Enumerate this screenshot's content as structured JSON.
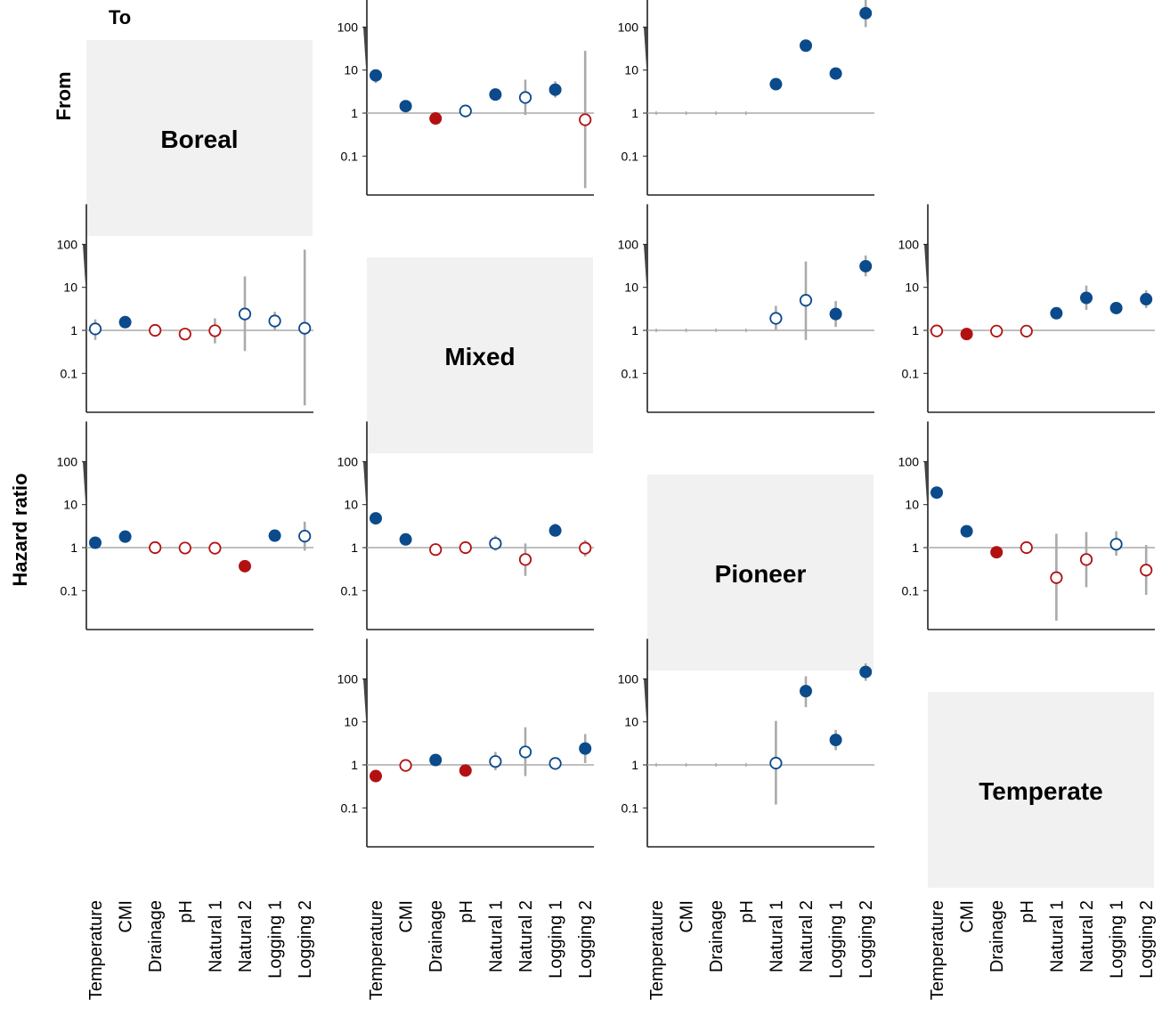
{
  "labels": {
    "to": "To",
    "from": "From",
    "y_axis": "Hazard ratio"
  },
  "colors": {
    "positive": "#0b4a8b",
    "negative": "#b31111",
    "error_bar": "#aaaaaa",
    "reference_line": "#aaaaaa",
    "axis": "#222222",
    "diagonal_panel": "#f1f1f1"
  },
  "chart_data": {
    "type": "scatter",
    "y_scale": "log",
    "ylim": [
      0.01,
      500
    ],
    "y_ticks": [
      {
        "value": 100,
        "label": "100"
      },
      {
        "value": 10,
        "label": "10"
      },
      {
        "value": 1,
        "label": "1"
      },
      {
        "value": 0.1,
        "label": "0.1"
      }
    ],
    "reference_line": 1,
    "categories": [
      "Temperature",
      "CMI",
      "Drainage",
      "pH",
      "Natural 1",
      "Natural 2",
      "Logging 1",
      "Logging 2"
    ],
    "states": [
      "Boreal",
      "Mixed",
      "Pioneer",
      "Temperate"
    ],
    "panels": [
      {
        "from": "Boreal",
        "to": "Mixed",
        "points": [
          {
            "category": "Temperature",
            "value": 7.5,
            "low": 5,
            "high": 9,
            "filled": true,
            "direction": "positive"
          },
          {
            "category": "CMI",
            "value": 1.45,
            "low": 1.3,
            "high": 1.6,
            "filled": true,
            "direction": "positive"
          },
          {
            "category": "Drainage",
            "value": 0.75,
            "low": 0.68,
            "high": 0.82,
            "filled": true,
            "direction": "negative"
          },
          {
            "category": "pH",
            "value": 1.12,
            "low": 0.9,
            "high": 1.35,
            "filled": false,
            "direction": "positive"
          },
          {
            "category": "Natural 1",
            "value": 2.7,
            "low": 2.4,
            "high": 3.0,
            "filled": true,
            "direction": "positive"
          },
          {
            "category": "Natural 2",
            "value": 2.3,
            "low": 0.9,
            "high": 6,
            "filled": false,
            "direction": "positive"
          },
          {
            "category": "Logging 1",
            "value": 3.5,
            "low": 2.3,
            "high": 5.5,
            "filled": true,
            "direction": "positive"
          },
          {
            "category": "Logging 2",
            "value": 0.7,
            "low": 0.018,
            "high": 28,
            "filled": false,
            "direction": "negative"
          }
        ]
      },
      {
        "from": "Boreal",
        "to": "Pioneer",
        "points": [
          {
            "category": "Temperature",
            "value": null,
            "low": null,
            "high": null,
            "filled": false,
            "direction": "none"
          },
          {
            "category": "CMI",
            "value": null,
            "low": null,
            "high": null,
            "filled": false,
            "direction": "none"
          },
          {
            "category": "Drainage",
            "value": null,
            "low": null,
            "high": null,
            "filled": false,
            "direction": "none"
          },
          {
            "category": "pH",
            "value": null,
            "low": null,
            "high": null,
            "filled": false,
            "direction": "none"
          },
          {
            "category": "Natural 1",
            "value": 4.7,
            "low": 4.2,
            "high": 5.3,
            "filled": true,
            "direction": "positive"
          },
          {
            "category": "Natural 2",
            "value": 37,
            "low": 30,
            "high": 45,
            "filled": true,
            "direction": "positive"
          },
          {
            "category": "Logging 1",
            "value": 8.3,
            "low": 6,
            "high": 11,
            "filled": true,
            "direction": "positive"
          },
          {
            "category": "Logging 2",
            "value": 210,
            "low": 100,
            "high": 450,
            "filled": true,
            "direction": "positive"
          }
        ]
      },
      {
        "from": "Mixed",
        "to": "Boreal",
        "points": [
          {
            "category": "Temperature",
            "value": 1.08,
            "low": 0.6,
            "high": 1.8,
            "filled": false,
            "direction": "positive"
          },
          {
            "category": "CMI",
            "value": 1.55,
            "low": 1.35,
            "high": 1.75,
            "filled": true,
            "direction": "positive"
          },
          {
            "category": "Drainage",
            "value": 1.0,
            "low": 0.85,
            "high": 1.15,
            "filled": false,
            "direction": "negative"
          },
          {
            "category": "pH",
            "value": 0.82,
            "low": 0.68,
            "high": 0.98,
            "filled": false,
            "direction": "negative"
          },
          {
            "category": "Natural 1",
            "value": 0.98,
            "low": 0.5,
            "high": 1.9,
            "filled": false,
            "direction": "negative"
          },
          {
            "category": "Natural 2",
            "value": 2.4,
            "low": 0.33,
            "high": 18,
            "filled": false,
            "direction": "positive"
          },
          {
            "category": "Logging 1",
            "value": 1.65,
            "low": 1.0,
            "high": 2.7,
            "filled": false,
            "direction": "positive"
          },
          {
            "category": "Logging 2",
            "value": 1.12,
            "low": 0.018,
            "high": 75,
            "filled": false,
            "direction": "positive"
          }
        ]
      },
      {
        "from": "Mixed",
        "to": "Pioneer",
        "points": [
          {
            "category": "Temperature",
            "value": null,
            "low": null,
            "high": null,
            "filled": false,
            "direction": "none"
          },
          {
            "category": "CMI",
            "value": null,
            "low": null,
            "high": null,
            "filled": false,
            "direction": "none"
          },
          {
            "category": "Drainage",
            "value": null,
            "low": null,
            "high": null,
            "filled": false,
            "direction": "none"
          },
          {
            "category": "pH",
            "value": null,
            "low": null,
            "high": null,
            "filled": false,
            "direction": "none"
          },
          {
            "category": "Natural 1",
            "value": 1.9,
            "low": 1.0,
            "high": 3.7,
            "filled": false,
            "direction": "positive"
          },
          {
            "category": "Natural 2",
            "value": 5.0,
            "low": 0.6,
            "high": 40,
            "filled": false,
            "direction": "positive"
          },
          {
            "category": "Logging 1",
            "value": 2.4,
            "low": 1.2,
            "high": 4.8,
            "filled": true,
            "direction": "positive"
          },
          {
            "category": "Logging 2",
            "value": 31,
            "low": 18,
            "high": 55,
            "filled": true,
            "direction": "positive"
          }
        ]
      },
      {
        "from": "Mixed",
        "to": "Temperate",
        "points": [
          {
            "category": "Temperature",
            "value": 0.97,
            "low": 0.85,
            "high": 1.1,
            "filled": false,
            "direction": "negative"
          },
          {
            "category": "CMI",
            "value": 0.82,
            "low": 0.75,
            "high": 0.9,
            "filled": true,
            "direction": "negative"
          },
          {
            "category": "Drainage",
            "value": 0.96,
            "low": 0.88,
            "high": 1.05,
            "filled": false,
            "direction": "negative"
          },
          {
            "category": "pH",
            "value": 0.96,
            "low": 0.85,
            "high": 1.08,
            "filled": false,
            "direction": "negative"
          },
          {
            "category": "Natural 1",
            "value": 2.5,
            "low": 2.2,
            "high": 2.9,
            "filled": true,
            "direction": "positive"
          },
          {
            "category": "Natural 2",
            "value": 5.7,
            "low": 3.0,
            "high": 11,
            "filled": true,
            "direction": "positive"
          },
          {
            "category": "Logging 1",
            "value": 3.3,
            "low": 2.8,
            "high": 3.9,
            "filled": true,
            "direction": "positive"
          },
          {
            "category": "Logging 2",
            "value": 5.3,
            "low": 3.3,
            "high": 8.5,
            "filled": true,
            "direction": "positive"
          }
        ]
      },
      {
        "from": "Pioneer",
        "to": "Boreal",
        "points": [
          {
            "category": "Temperature",
            "value": 1.3,
            "low": 1.15,
            "high": 1.45,
            "filled": true,
            "direction": "positive"
          },
          {
            "category": "CMI",
            "value": 1.8,
            "low": 1.6,
            "high": 2.0,
            "filled": true,
            "direction": "positive"
          },
          {
            "category": "Drainage",
            "value": 1.0,
            "low": 0.9,
            "high": 1.1,
            "filled": false,
            "direction": "negative"
          },
          {
            "category": "pH",
            "value": 0.98,
            "low": 0.9,
            "high": 1.07,
            "filled": false,
            "direction": "negative"
          },
          {
            "category": "Natural 1",
            "value": 0.97,
            "low": 0.85,
            "high": 1.1,
            "filled": false,
            "direction": "negative"
          },
          {
            "category": "Natural 2",
            "value": 0.37,
            "low": 0.32,
            "high": 0.42,
            "filled": true,
            "direction": "negative"
          },
          {
            "category": "Logging 1",
            "value": 1.9,
            "low": 1.7,
            "high": 2.2,
            "filled": true,
            "direction": "positive"
          },
          {
            "category": "Logging 2",
            "value": 1.85,
            "low": 0.85,
            "high": 4.0,
            "filled": false,
            "direction": "positive"
          }
        ]
      },
      {
        "from": "Pioneer",
        "to": "Mixed",
        "points": [
          {
            "category": "Temperature",
            "value": 4.8,
            "low": 4.2,
            "high": 5.5,
            "filled": true,
            "direction": "positive"
          },
          {
            "category": "CMI",
            "value": 1.55,
            "low": 1.4,
            "high": 1.72,
            "filled": true,
            "direction": "positive"
          },
          {
            "category": "Drainage",
            "value": 0.9,
            "low": 0.8,
            "high": 1.0,
            "filled": false,
            "direction": "negative"
          },
          {
            "category": "pH",
            "value": 1.0,
            "low": 0.9,
            "high": 1.1,
            "filled": false,
            "direction": "negative"
          },
          {
            "category": "Natural 1",
            "value": 1.25,
            "low": 0.85,
            "high": 1.9,
            "filled": false,
            "direction": "positive"
          },
          {
            "category": "Natural 2",
            "value": 0.53,
            "low": 0.22,
            "high": 1.25,
            "filled": false,
            "direction": "negative"
          },
          {
            "category": "Logging 1",
            "value": 2.5,
            "low": 1.9,
            "high": 3.6,
            "filled": true,
            "direction": "positive"
          },
          {
            "category": "Logging 2",
            "value": 0.97,
            "low": 0.62,
            "high": 1.5,
            "filled": false,
            "direction": "negative"
          }
        ]
      },
      {
        "from": "Pioneer",
        "to": "Temperate",
        "points": [
          {
            "category": "Temperature",
            "value": 19,
            "low": 14,
            "high": 25,
            "filled": true,
            "direction": "positive"
          },
          {
            "category": "CMI",
            "value": 2.4,
            "low": 2.1,
            "high": 2.7,
            "filled": true,
            "direction": "positive"
          },
          {
            "category": "Drainage",
            "value": 0.78,
            "low": 0.68,
            "high": 0.88,
            "filled": true,
            "direction": "negative"
          },
          {
            "category": "pH",
            "value": 1.0,
            "low": 0.88,
            "high": 1.12,
            "filled": false,
            "direction": "negative"
          },
          {
            "category": "Natural 1",
            "value": 0.2,
            "low": 0.02,
            "high": 2.1,
            "filled": false,
            "direction": "negative"
          },
          {
            "category": "Natural 2",
            "value": 0.53,
            "low": 0.12,
            "high": 2.3,
            "filled": false,
            "direction": "negative"
          },
          {
            "category": "Logging 1",
            "value": 1.2,
            "low": 0.65,
            "high": 2.4,
            "filled": false,
            "direction": "positive"
          },
          {
            "category": "Logging 2",
            "value": 0.3,
            "low": 0.08,
            "high": 1.15,
            "filled": false,
            "direction": "negative"
          }
        ]
      },
      {
        "from": "Temperate",
        "to": "Mixed",
        "points": [
          {
            "category": "Temperature",
            "value": 0.55,
            "low": 0.48,
            "high": 0.62,
            "filled": true,
            "direction": "negative"
          },
          {
            "category": "CMI",
            "value": 0.97,
            "low": 0.85,
            "high": 1.1,
            "filled": false,
            "direction": "negative"
          },
          {
            "category": "Drainage",
            "value": 1.3,
            "low": 1.15,
            "high": 1.45,
            "filled": true,
            "direction": "positive"
          },
          {
            "category": "pH",
            "value": 0.74,
            "low": 0.66,
            "high": 0.83,
            "filled": true,
            "direction": "negative"
          },
          {
            "category": "Natural 1",
            "value": 1.2,
            "low": 0.75,
            "high": 2.0,
            "filled": false,
            "direction": "positive"
          },
          {
            "category": "Natural 2",
            "value": 2.0,
            "low": 0.55,
            "high": 7.5,
            "filled": false,
            "direction": "positive"
          },
          {
            "category": "Logging 1",
            "value": 1.08,
            "low": 0.85,
            "high": 1.35,
            "filled": false,
            "direction": "positive"
          },
          {
            "category": "Logging 2",
            "value": 2.4,
            "low": 1.1,
            "high": 5.2,
            "filled": true,
            "direction": "positive"
          }
        ]
      },
      {
        "from": "Temperate",
        "to": "Pioneer",
        "points": [
          {
            "category": "Temperature",
            "value": null,
            "low": null,
            "high": null,
            "filled": false,
            "direction": "none"
          },
          {
            "category": "CMI",
            "value": null,
            "low": null,
            "high": null,
            "filled": false,
            "direction": "none"
          },
          {
            "category": "Drainage",
            "value": null,
            "low": null,
            "high": null,
            "filled": false,
            "direction": "none"
          },
          {
            "category": "pH",
            "value": null,
            "low": null,
            "high": null,
            "filled": false,
            "direction": "none"
          },
          {
            "category": "Natural 1",
            "value": 1.1,
            "low": 0.12,
            "high": 10.5,
            "filled": false,
            "direction": "positive"
          },
          {
            "category": "Natural 2",
            "value": 52,
            "low": 22,
            "high": 115,
            "filled": true,
            "direction": "positive"
          },
          {
            "category": "Logging 1",
            "value": 3.8,
            "low": 2.2,
            "high": 6.5,
            "filled": true,
            "direction": "positive"
          },
          {
            "category": "Logging 2",
            "value": 145,
            "low": 90,
            "high": 230,
            "filled": true,
            "direction": "positive"
          }
        ]
      }
    ]
  }
}
